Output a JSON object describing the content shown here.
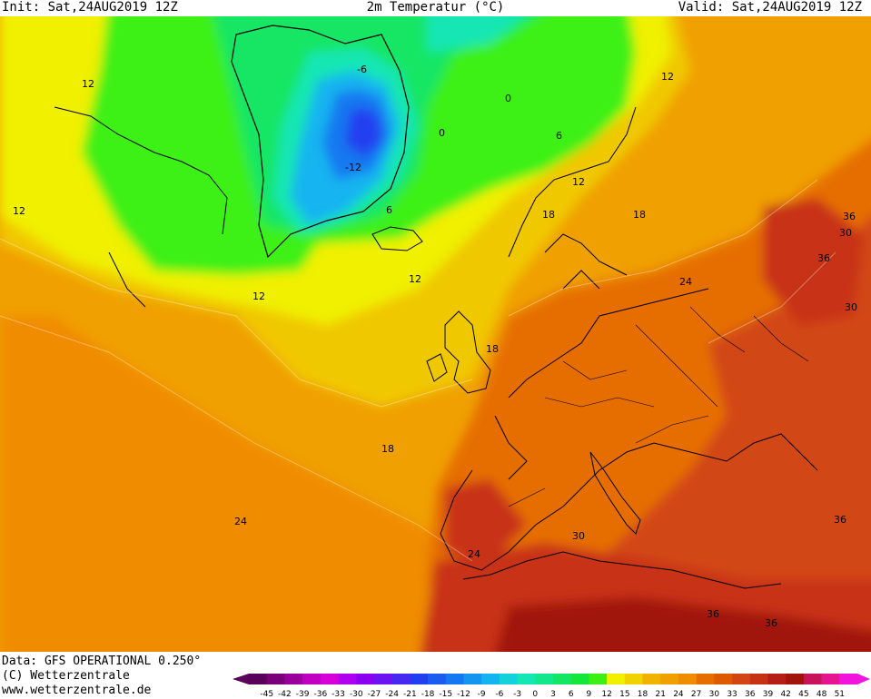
{
  "header": {
    "init": "Init: Sat,24AUG2019 12Z",
    "title": "2m Temperatur (°C)",
    "valid": "Valid: Sat,24AUG2019 12Z"
  },
  "footer": {
    "data_source": "Data: GFS OPERATIONAL 0.250°",
    "copyright": "(C) Wetterzentrale",
    "website": "www.wetterzentrale.de"
  },
  "legend": {
    "ticks": [
      "-45",
      "-42",
      "-39",
      "-36",
      "-33",
      "-30",
      "-27",
      "-24",
      "-21",
      "-18",
      "-15",
      "-12",
      "-9",
      "-6",
      "-3",
      "0",
      "3",
      "6",
      "9",
      "12",
      "15",
      "18",
      "21",
      "24",
      "27",
      "30",
      "33",
      "36",
      "39",
      "42",
      "45",
      "48",
      "51"
    ],
    "colors": [
      "#5a005a",
      "#7a007a",
      "#9a009a",
      "#c000c0",
      "#d800d8",
      "#b000f0",
      "#8c00f0",
      "#6c14f0",
      "#4628f0",
      "#2040f0",
      "#1a5cf0",
      "#1478f0",
      "#1496f0",
      "#14b4f0",
      "#14d2dc",
      "#14e6b4",
      "#14e68c",
      "#14e664",
      "#14e63c",
      "#3cf014",
      "#f0f000",
      "#f0d200",
      "#f0b400",
      "#f0a000",
      "#f08c00",
      "#e66e00",
      "#dc5a00",
      "#d24614",
      "#c83214",
      "#b41e14",
      "#a0140a",
      "#c8145a",
      "#e61490",
      "#f014dc"
    ]
  },
  "contour_labels": [
    {
      "text": "12"
    },
    {
      "text": "12"
    },
    {
      "text": "-6"
    },
    {
      "text": "0"
    },
    {
      "text": "0"
    },
    {
      "text": "-12"
    },
    {
      "text": "6"
    },
    {
      "text": "6"
    },
    {
      "text": "12"
    },
    {
      "text": "12"
    },
    {
      "text": "18"
    },
    {
      "text": "18"
    },
    {
      "text": "12"
    },
    {
      "text": "12"
    },
    {
      "text": "18"
    },
    {
      "text": "18"
    },
    {
      "text": "24"
    },
    {
      "text": "24"
    },
    {
      "text": "30"
    },
    {
      "text": "36"
    },
    {
      "text": "30"
    },
    {
      "text": "36"
    },
    {
      "text": "30"
    },
    {
      "text": "36"
    },
    {
      "text": "36"
    },
    {
      "text": "36"
    },
    {
      "text": "24"
    }
  ]
}
